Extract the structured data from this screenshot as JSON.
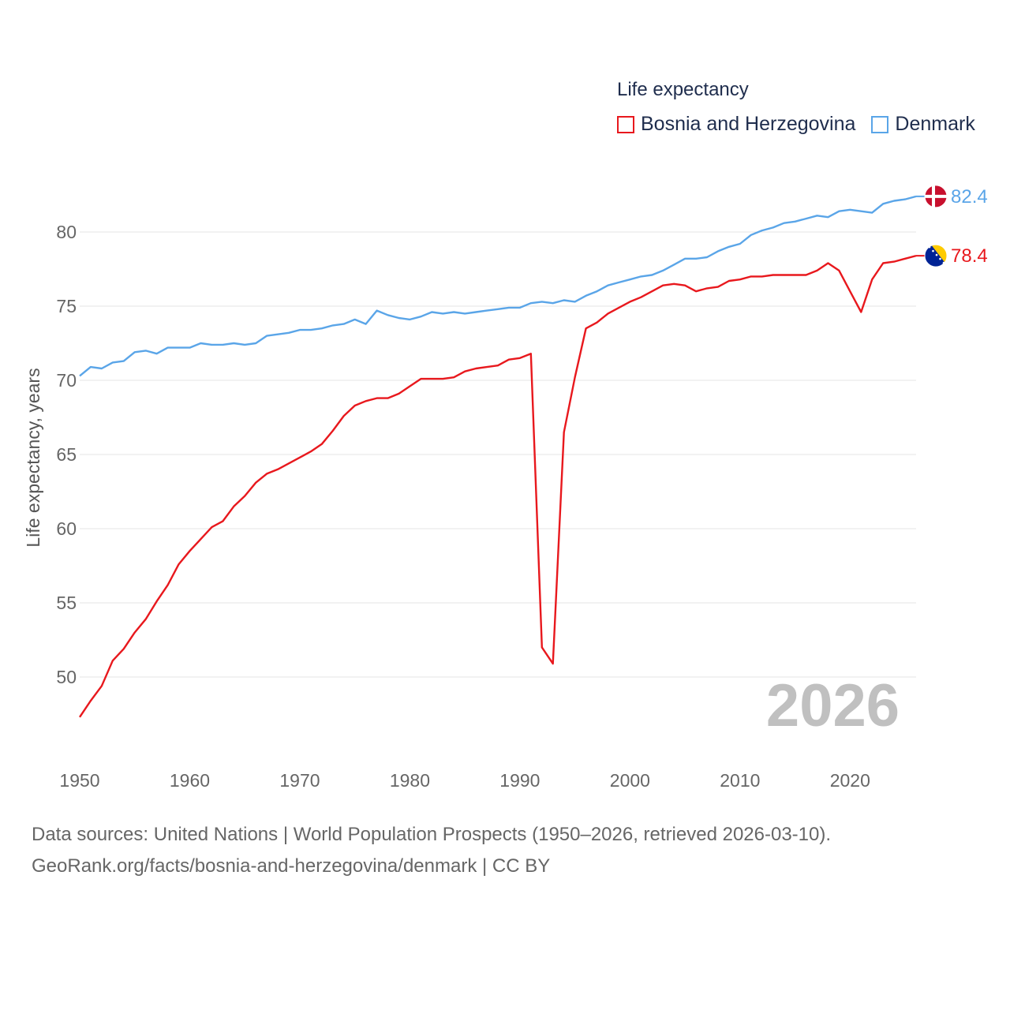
{
  "legend": {
    "title": "Life expectancy",
    "items": [
      {
        "label": "Bosnia and Herzegovina",
        "color": "#e8181d"
      },
      {
        "label": "Denmark",
        "color": "#5aa5e8"
      }
    ]
  },
  "source": {
    "line1": "Data sources: United Nations | World Population Prospects (1950–2026, retrieved 2026-03-10).",
    "line2": "GeoRank.org/facts/bosnia-and-herzegovina/denmark | CC BY"
  },
  "chart_data": {
    "type": "line",
    "title": "Life expectancy",
    "xlabel": "",
    "ylabel": "Life expectancy, years",
    "xlim": [
      1950,
      2026
    ],
    "ylim": [
      45,
      85
    ],
    "yticks": [
      50,
      55,
      60,
      65,
      70,
      75,
      80
    ],
    "xticks": [
      1950,
      1960,
      1970,
      1980,
      1990,
      2000,
      2010,
      2020
    ],
    "year_label": "2026",
    "grid": true,
    "legend_position": "top-right",
    "series": [
      {
        "name": "Bosnia and Herzegovina",
        "color": "#e8181d",
        "end_label": "78.4",
        "flag": "Bosnia and Herzegovina",
        "x": [
          1950,
          1951,
          1952,
          1953,
          1954,
          1955,
          1956,
          1957,
          1958,
          1959,
          1960,
          1961,
          1962,
          1963,
          1964,
          1965,
          1966,
          1967,
          1968,
          1969,
          1970,
          1971,
          1972,
          1973,
          1974,
          1975,
          1976,
          1977,
          1978,
          1979,
          1980,
          1981,
          1982,
          1983,
          1984,
          1985,
          1986,
          1987,
          1988,
          1989,
          1990,
          1991,
          1992,
          1993,
          1994,
          1995,
          1996,
          1997,
          1998,
          1999,
          2000,
          2001,
          2002,
          2003,
          2004,
          2005,
          2006,
          2007,
          2008,
          2009,
          2010,
          2011,
          2012,
          2013,
          2014,
          2015,
          2016,
          2017,
          2018,
          2019,
          2020,
          2021,
          2022,
          2023,
          2024,
          2025,
          2026
        ],
        "values": [
          47.3,
          48.4,
          49.4,
          51.1,
          51.9,
          53.0,
          53.9,
          55.1,
          56.2,
          57.6,
          58.5,
          59.3,
          60.1,
          60.5,
          61.5,
          62.2,
          63.1,
          63.7,
          64.0,
          64.4,
          64.8,
          65.2,
          65.7,
          66.6,
          67.6,
          68.3,
          68.6,
          68.8,
          68.8,
          69.1,
          69.6,
          70.1,
          70.1,
          70.1,
          70.2,
          70.6,
          70.8,
          70.9,
          71.0,
          71.4,
          71.5,
          71.8,
          52.0,
          50.9,
          66.5,
          70.2,
          73.5,
          73.9,
          74.5,
          74.9,
          75.3,
          75.6,
          76.0,
          76.4,
          76.5,
          76.4,
          76.0,
          76.2,
          76.3,
          76.7,
          76.8,
          77.0,
          77.0,
          77.1,
          77.1,
          77.1,
          77.1,
          77.4,
          77.9,
          77.4,
          76.0,
          74.6,
          76.8,
          77.9,
          78.0,
          78.2,
          78.4
        ]
      },
      {
        "name": "Denmark",
        "color": "#5aa5e8",
        "end_label": "82.4",
        "flag": "Denmark",
        "x": [
          1950,
          1951,
          1952,
          1953,
          1954,
          1955,
          1956,
          1957,
          1958,
          1959,
          1960,
          1961,
          1962,
          1963,
          1964,
          1965,
          1966,
          1967,
          1968,
          1969,
          1970,
          1971,
          1972,
          1973,
          1974,
          1975,
          1976,
          1977,
          1978,
          1979,
          1980,
          1981,
          1982,
          1983,
          1984,
          1985,
          1986,
          1987,
          1988,
          1989,
          1990,
          1991,
          1992,
          1993,
          1994,
          1995,
          1996,
          1997,
          1998,
          1999,
          2000,
          2001,
          2002,
          2003,
          2004,
          2005,
          2006,
          2007,
          2008,
          2009,
          2010,
          2011,
          2012,
          2013,
          2014,
          2015,
          2016,
          2017,
          2018,
          2019,
          2020,
          2021,
          2022,
          2023,
          2024,
          2025,
          2026
        ],
        "values": [
          70.3,
          70.9,
          70.8,
          71.2,
          71.3,
          71.9,
          72.0,
          71.8,
          72.2,
          72.2,
          72.2,
          72.5,
          72.4,
          72.4,
          72.5,
          72.4,
          72.5,
          73.0,
          73.1,
          73.2,
          73.4,
          73.4,
          73.5,
          73.7,
          73.8,
          74.1,
          73.8,
          74.7,
          74.4,
          74.2,
          74.1,
          74.3,
          74.6,
          74.5,
          74.6,
          74.5,
          74.6,
          74.7,
          74.8,
          74.9,
          74.9,
          75.2,
          75.3,
          75.2,
          75.4,
          75.3,
          75.7,
          76.0,
          76.4,
          76.6,
          76.8,
          77.0,
          77.1,
          77.4,
          77.8,
          78.2,
          78.2,
          78.3,
          78.7,
          79.0,
          79.2,
          79.8,
          80.1,
          80.3,
          80.6,
          80.7,
          80.9,
          81.1,
          81.0,
          81.4,
          81.5,
          81.4,
          81.3,
          81.9,
          82.1,
          82.2,
          82.4
        ]
      }
    ]
  }
}
